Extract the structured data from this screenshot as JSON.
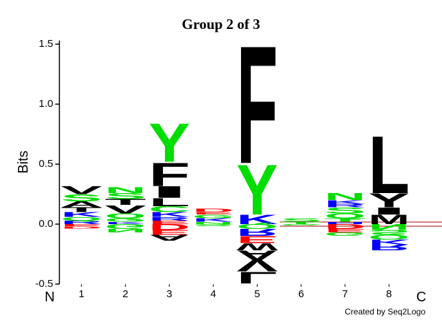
{
  "chart_data": {
    "type": "logo",
    "title": "Group 2 of 3",
    "ylabel": "Bits",
    "start_label": "N",
    "end_label": "C",
    "credit": "Created by Seq2Logo",
    "ylim": [
      -0.5,
      1.53
    ],
    "yticks": [
      -0.5,
      {
        "value": 0,
        "label": "0.0"
      },
      0.5,
      {
        "value": 1,
        "label": "1.0"
      },
      1.5
    ],
    "categories": [
      "1",
      "2",
      "3",
      "4",
      "5",
      "6",
      "7",
      "8"
    ],
    "columns": [
      {
        "positive": [
          {
            "letter": "R",
            "color": "#0000ff",
            "value": 0.03
          },
          {
            "letter": "Q",
            "color": "#00dd00",
            "value": 0.03
          },
          {
            "letter": "K",
            "color": "#0000ff",
            "value": 0.04
          },
          {
            "letter": "T",
            "color": "#000000",
            "value": 0.04
          },
          {
            "letter": "A",
            "color": "#000000",
            "value": 0.05
          },
          {
            "letter": "S",
            "color": "#00dd00",
            "value": 0.06
          },
          {
            "letter": "V",
            "color": "#000000",
            "value": 0.07
          }
        ],
        "negative": [
          {
            "letter": "E",
            "color": "#ff0000",
            "value": -0.02
          },
          {
            "letter": "D",
            "color": "#ff0000",
            "value": -0.02
          }
        ]
      },
      {
        "positive": [
          {
            "letter": "K",
            "color": "#0000ff",
            "value": 0.02
          },
          {
            "letter": "G",
            "color": "#00dd00",
            "value": 0.03
          },
          {
            "letter": "Q",
            "color": "#00dd00",
            "value": 0.04
          },
          {
            "letter": "V",
            "color": "#000000",
            "value": 0.07
          },
          {
            "letter": "T",
            "color": "#000000",
            "value": 0.05
          },
          {
            "letter": "S",
            "color": "#00dd00",
            "value": 0.05
          },
          {
            "letter": "N",
            "color": "#00dd00",
            "value": 0.05
          }
        ],
        "negative": [
          {
            "letter": "G",
            "color": "#00dd00",
            "value": -0.04
          },
          {
            "letter": "N",
            "color": "#00dd00",
            "value": -0.03
          }
        ]
      },
      {
        "positive": [
          {
            "letter": "E",
            "color": "#ff0000",
            "value": 0.03
          },
          {
            "letter": "R",
            "color": "#0000ff",
            "value": 0.03
          },
          {
            "letter": "K",
            "color": "#0000ff",
            "value": 0.04
          },
          {
            "letter": "C",
            "color": "#00dd00",
            "value": 0.05
          },
          {
            "letter": "L",
            "color": "#000000",
            "value": 0.07
          },
          {
            "letter": "I",
            "color": "#000000",
            "value": 0.1
          },
          {
            "letter": "F",
            "color": "#000000",
            "value": 0.2
          },
          {
            "letter": "Y",
            "color": "#00dd00",
            "value": 0.33
          }
        ],
        "negative": [
          {
            "letter": "D",
            "color": "#ff0000",
            "value": -0.05
          },
          {
            "letter": "E",
            "color": "#ff0000",
            "value": -0.04
          },
          {
            "letter": "A",
            "color": "#000000",
            "value": -0.05
          }
        ]
      },
      {
        "positive": [
          {
            "letter": "N",
            "color": "#00dd00",
            "value": 0.02
          },
          {
            "letter": "K",
            "color": "#0000ff",
            "value": 0.03
          },
          {
            "letter": "G",
            "color": "#00dd00",
            "value": 0.03
          },
          {
            "letter": "E",
            "color": "#ff0000",
            "value": 0.02
          },
          {
            "letter": "D",
            "color": "#ff0000",
            "value": 0.03
          }
        ],
        "negative": [
          {
            "letter": "S",
            "color": "#00dd00",
            "value": -0.02
          }
        ]
      },
      {
        "positive": [
          {
            "letter": "K",
            "color": "#0000ff",
            "value": 0.08
          },
          {
            "letter": "Y",
            "color": "#00dd00",
            "value": 0.43
          },
          {
            "letter": "F",
            "color": "#000000",
            "value": 1.01
          }
        ],
        "negative": [
          {
            "letter": "Q",
            "color": "#00dd00",
            "value": -0.04
          },
          {
            "letter": "R",
            "color": "#0000ff",
            "value": -0.06
          },
          {
            "letter": "E",
            "color": "#ff0000",
            "value": -0.06
          },
          {
            "letter": "W",
            "color": "#000000",
            "value": -0.06
          },
          {
            "letter": "A",
            "color": "#000000",
            "value": -0.08
          },
          {
            "letter": "V",
            "color": "#000000",
            "value": -0.1
          },
          {
            "letter": "L",
            "color": "#000000",
            "value": -0.1
          }
        ]
      },
      {
        "positive": [
          {
            "letter": "T",
            "color": "#00dd00",
            "value": 0.02
          },
          {
            "letter": "S",
            "color": "#00dd00",
            "value": 0.03
          }
        ],
        "negative": [
          {
            "letter": "G",
            "color": "#00dd00",
            "value": -0.01
          }
        ]
      },
      {
        "positive": [
          {
            "letter": "H",
            "color": "#0000ff",
            "value": 0.02
          },
          {
            "letter": "T",
            "color": "#00dd00",
            "value": 0.03
          },
          {
            "letter": "Q",
            "color": "#00dd00",
            "value": 0.04
          },
          {
            "letter": "S",
            "color": "#00dd00",
            "value": 0.05
          },
          {
            "letter": "R",
            "color": "#0000ff",
            "value": 0.03
          },
          {
            "letter": "K",
            "color": "#0000ff",
            "value": 0.03
          },
          {
            "letter": "N",
            "color": "#00dd00",
            "value": 0.06
          }
        ],
        "negative": [
          {
            "letter": "D",
            "color": "#ff0000",
            "value": -0.04
          },
          {
            "letter": "E",
            "color": "#ff0000",
            "value": -0.03
          },
          {
            "letter": "G",
            "color": "#00dd00",
            "value": -0.03
          }
        ]
      },
      {
        "positive": [
          {
            "letter": "M",
            "color": "#000000",
            "value": 0.08
          },
          {
            "letter": "I",
            "color": "#000000",
            "value": 0.06
          },
          {
            "letter": "Y",
            "color": "#000000",
            "value": 0.12
          },
          {
            "letter": "L",
            "color": "#000000",
            "value": 0.49
          }
        ],
        "negative": [
          {
            "letter": "N",
            "color": "#00dd00",
            "value": -0.05
          },
          {
            "letter": "S",
            "color": "#00dd00",
            "value": -0.04
          },
          {
            "letter": "Q",
            "color": "#00dd00",
            "value": -0.04
          },
          {
            "letter": "K",
            "color": "#0000ff",
            "value": -0.04
          },
          {
            "letter": "R",
            "color": "#0000ff",
            "value": -0.05
          }
        ]
      }
    ]
  }
}
